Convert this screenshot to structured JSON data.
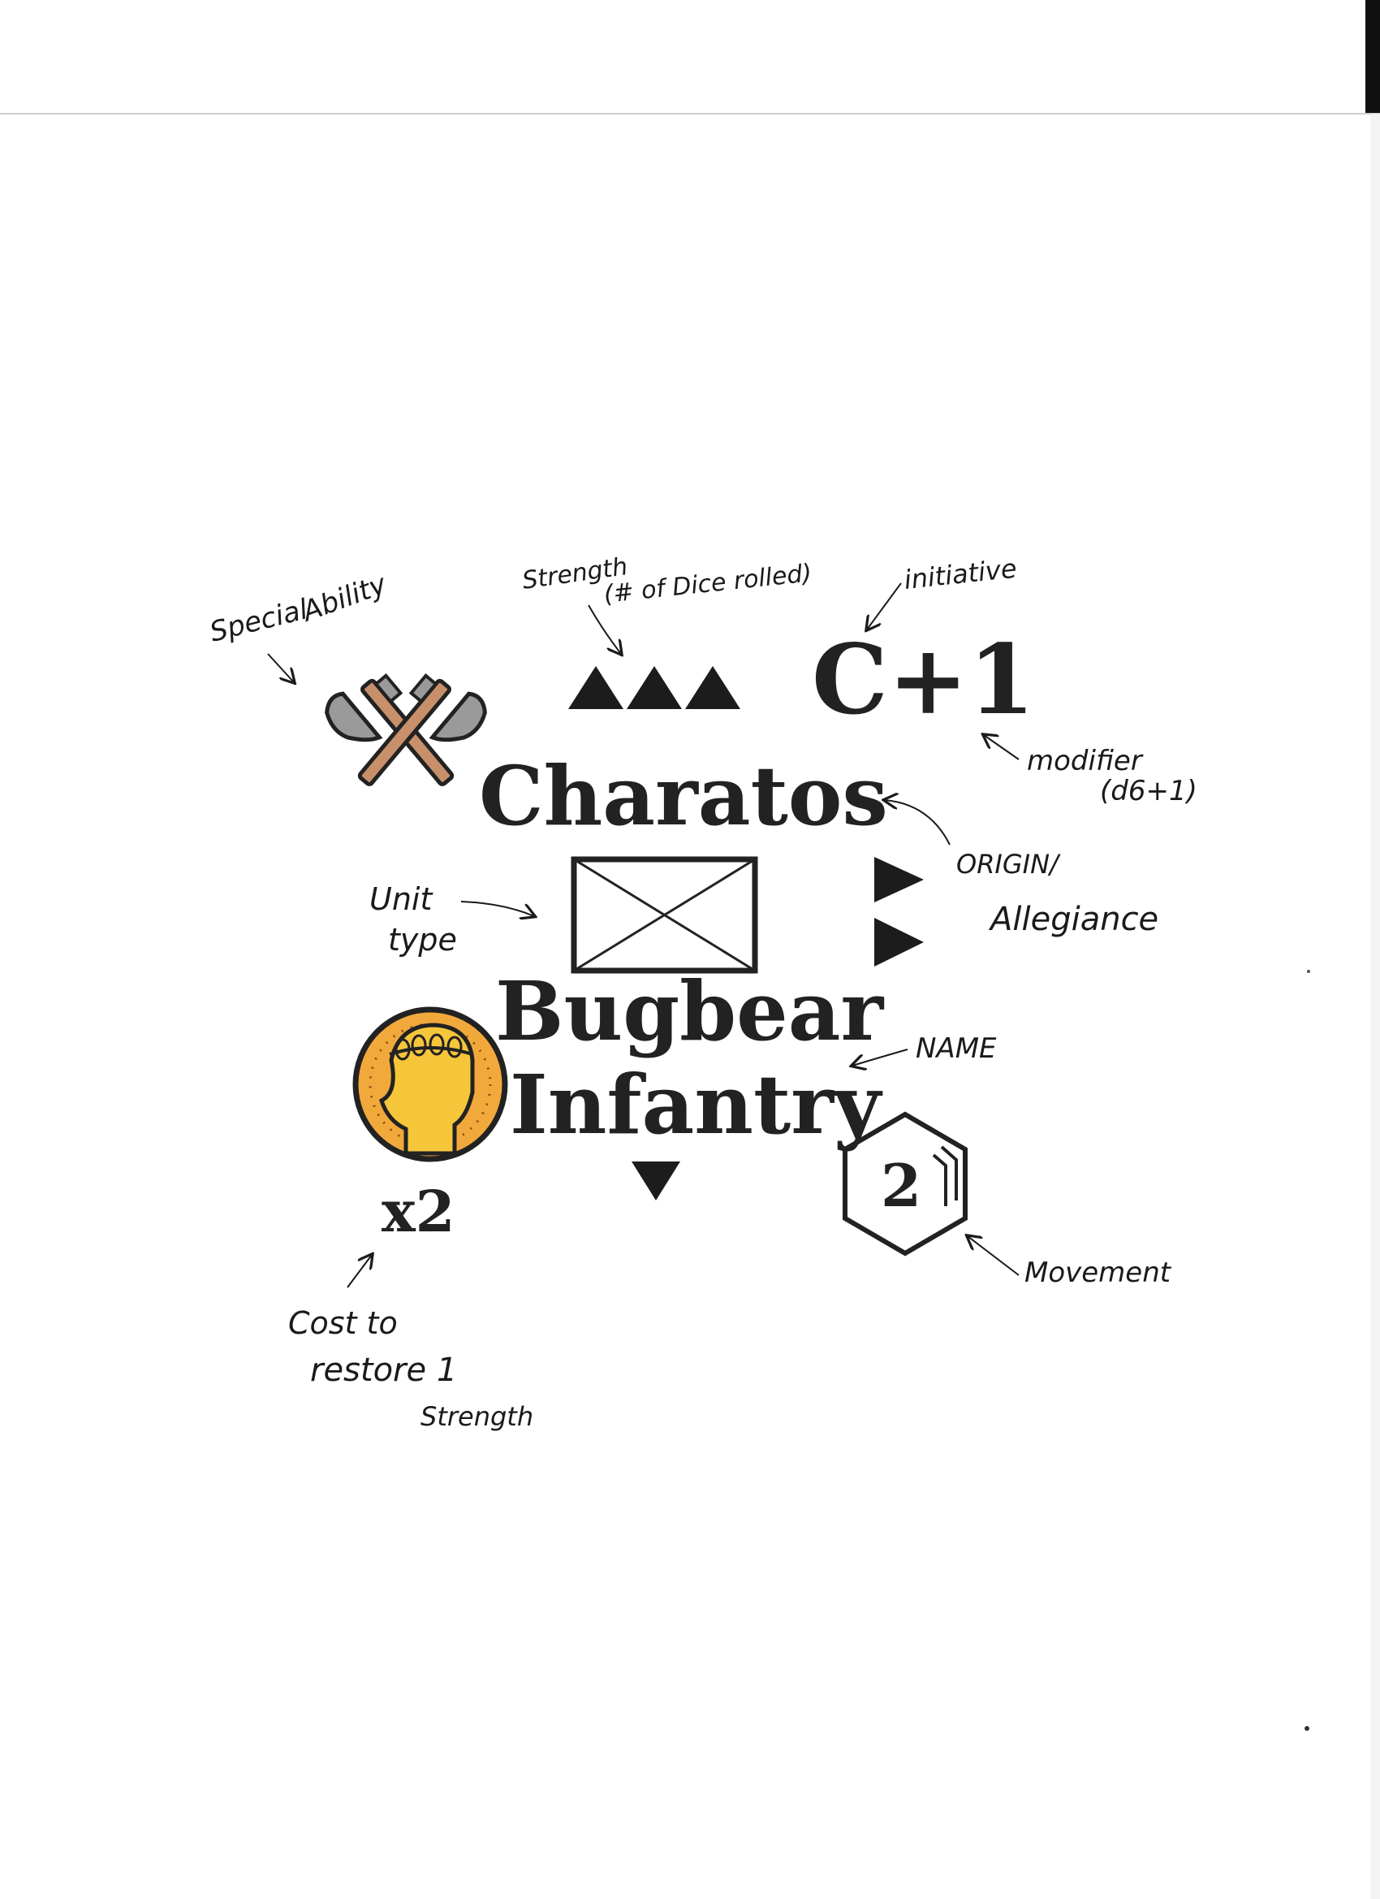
{
  "card": {
    "initiative_value": "C+1",
    "origin_name": "Charatos",
    "name_line1": "Bugbear",
    "name_line2": "Infantry",
    "cost_multiplier": "x2",
    "movement_value": "2"
  },
  "annotations": {
    "special_ability_1": "Special",
    "special_ability_2": "Ability",
    "strength_1": "Strength",
    "strength_2": "(# of Dice rolled)",
    "initiative": "initiative",
    "modifier_1": "modifier",
    "modifier_2": "(d6+1)",
    "origin_1": "ORIGIN/",
    "origin_2": "Allegiance",
    "unit_type_1": "Unit",
    "unit_type_2": "type",
    "name": "NAME",
    "movement": "Movement",
    "cost_1": "Cost to",
    "cost_2": "restore 1",
    "cost_3": "Strength"
  },
  "colors": {
    "ink": "#222222",
    "axe_handle": "#c8906a",
    "axe_blade": "#9a9a9a",
    "coin_gold": "#f2a93b",
    "coin_head": "#f6c63a"
  },
  "icons": {
    "special_ability": "crossed-axes-icon",
    "cost": "coin-head-icon",
    "unit_type": "infantry-symbol-icon",
    "movement": "hexagon-icon"
  }
}
